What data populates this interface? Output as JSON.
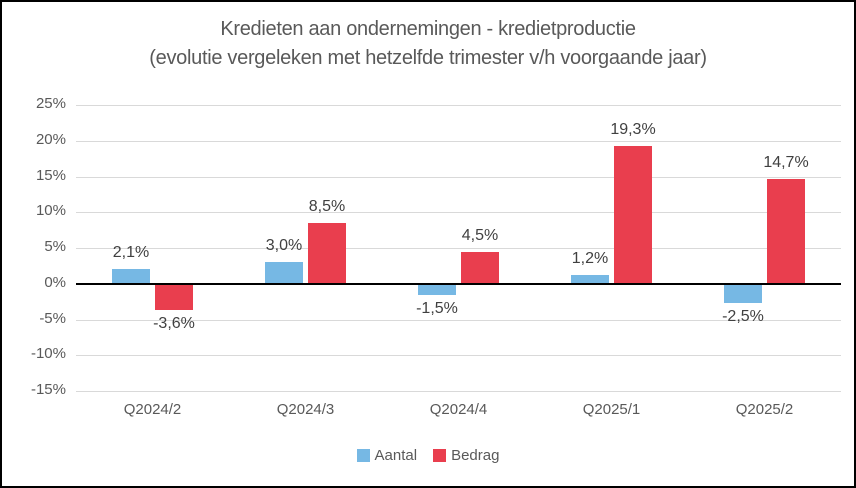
{
  "chart_data": {
    "type": "bar",
    "title": "Kredieten aan ondernemingen - kredietproductie",
    "subtitle": "(evolutie vergeleken met hetzelfde trimester v/h voorgaande jaar)",
    "categories": [
      "Q2024/2",
      "Q2024/3",
      "Q2024/4",
      "Q2025/1",
      "Q2025/2"
    ],
    "series": [
      {
        "name": "Aantal",
        "color": "#76B8E4",
        "values": [
          2.1,
          3.0,
          -1.5,
          1.2,
          -2.5
        ],
        "labels": [
          "2,1%",
          "3,0%",
          "-1,5%",
          "1,2%",
          "-2,5%"
        ]
      },
      {
        "name": "Bedrag",
        "color": "#E93E4E",
        "values": [
          -3.6,
          8.5,
          4.5,
          19.3,
          14.7
        ],
        "labels": [
          "-3,6%",
          "8,5%",
          "4,5%",
          "19,3%",
          "14,7%"
        ]
      }
    ],
    "ylim": [
      -15,
      25
    ],
    "ytick_step": 5,
    "ytick_labels": [
      "25%",
      "20%",
      "15%",
      "10%",
      "5%",
      "0%",
      "-5%",
      "-10%",
      "-15%"
    ],
    "grid": "horizontal",
    "legend_position": "bottom",
    "xlabel": "",
    "ylabel": "",
    "colors": {
      "gridline": "#D9D9D9",
      "zero_line": "#000000",
      "axis_text": "#595959",
      "data_label_text": "#404040",
      "title_text": "#595959",
      "frame_border": "#000000",
      "background": "#FFFFFF"
    }
  }
}
